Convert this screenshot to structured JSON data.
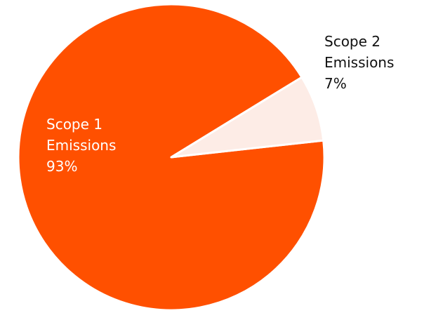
{
  "chart_data": {
    "type": "pie",
    "title": "",
    "slices": [
      {
        "label_lines": [
          "Scope 1",
          "Emissions"
        ],
        "value": 93,
        "value_label": "93%",
        "color": "#FF5000",
        "label_color": "#ffffff"
      },
      {
        "label_lines": [
          "Scope 2",
          "Emissions"
        ],
        "value": 7,
        "value_label": "7%",
        "color": "#FDECE6",
        "label_color": "#111111"
      }
    ],
    "legend": "none",
    "labels_position": "on-slice / outside"
  }
}
